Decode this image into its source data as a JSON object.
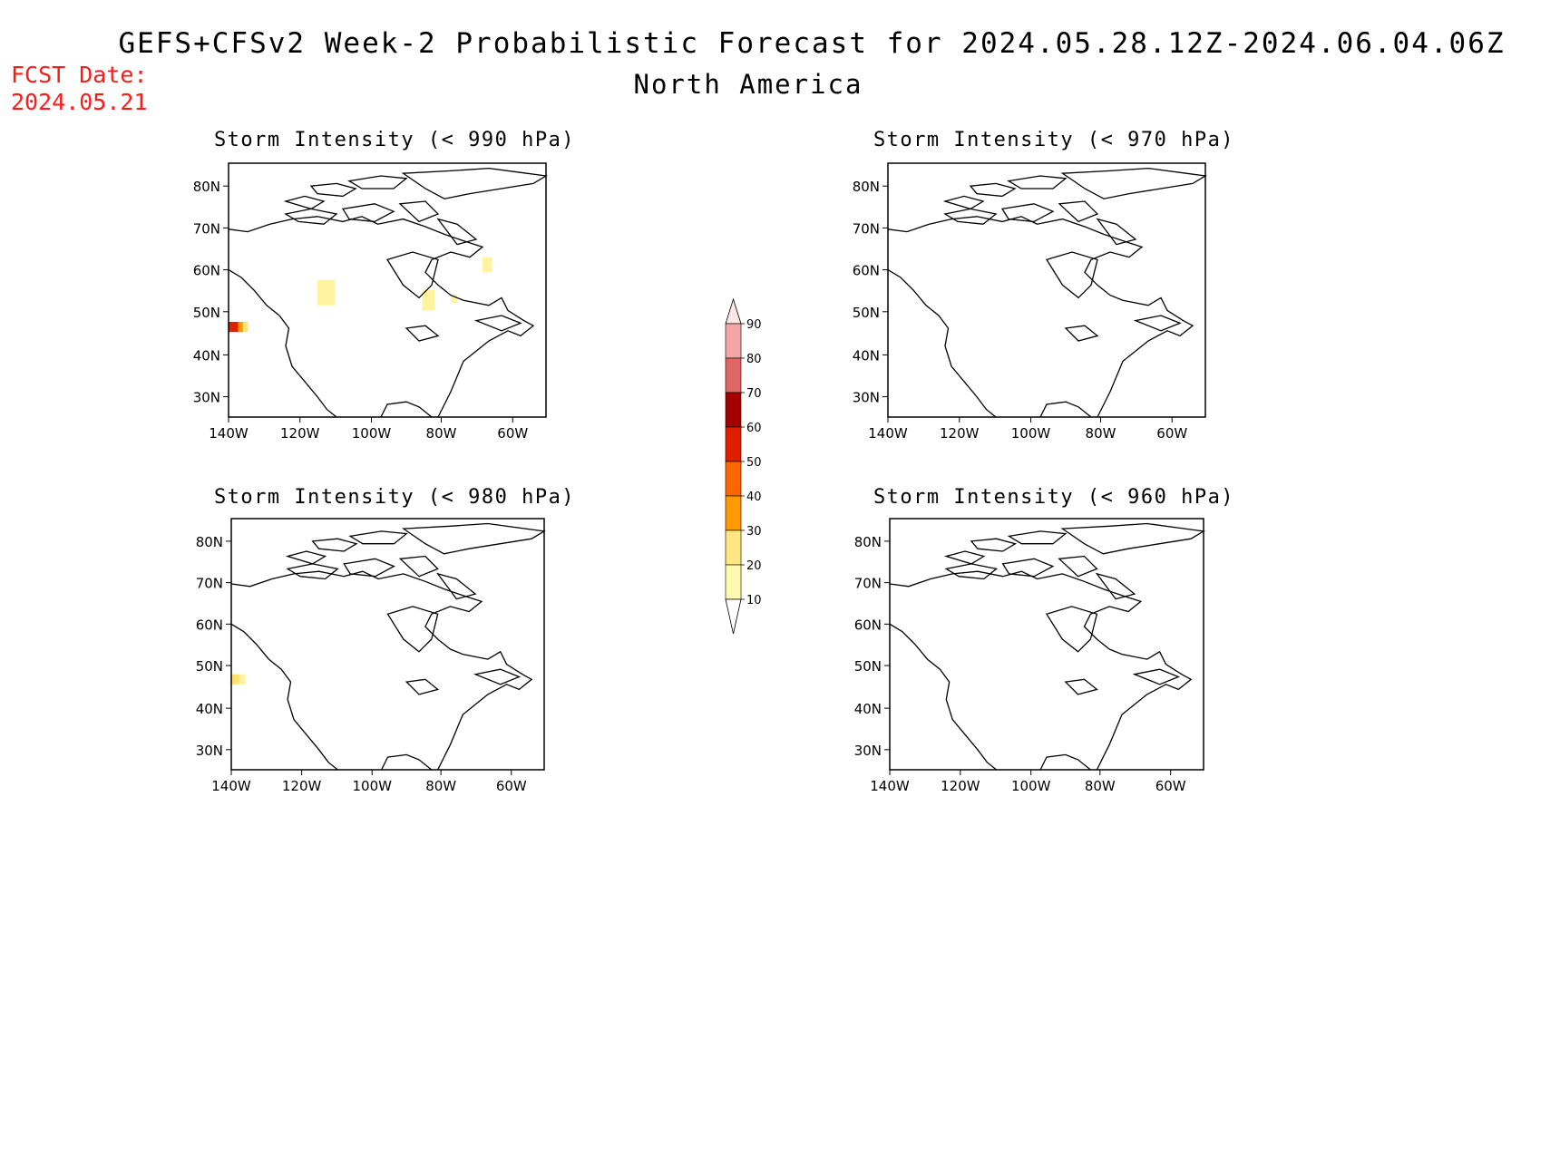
{
  "header": {
    "title": "GEFS+CFSv2 Week-2 Probabilistic Forecast for 2024.05.28.12Z-2024.06.04.06Z",
    "subtitle": "North America",
    "fcst_label": "FCST Date:",
    "fcst_date": "2024.05.21"
  },
  "panels": [
    {
      "id": "p990",
      "title": "Storm Intensity (< 990 hPa)",
      "lat_ticks": [
        "80N",
        "70N",
        "60N",
        "50N",
        "40N",
        "30N"
      ],
      "lon_ticks": [
        "140W",
        "120W",
        "100W",
        "80W",
        "60W"
      ]
    },
    {
      "id": "p970",
      "title": "Storm Intensity (< 970 hPa)",
      "lat_ticks": [
        "80N",
        "70N",
        "60N",
        "50N",
        "40N",
        "30N"
      ],
      "lon_ticks": [
        "140W",
        "120W",
        "100W",
        "80W",
        "60W"
      ]
    },
    {
      "id": "p980",
      "title": "Storm Intensity (< 980 hPa)",
      "lat_ticks": [
        "80N",
        "70N",
        "60N",
        "50N",
        "40N",
        "30N"
      ],
      "lon_ticks": [
        "140W",
        "120W",
        "100W",
        "80W",
        "60W"
      ]
    },
    {
      "id": "p960",
      "title": "Storm Intensity (< 960 hPa)",
      "lat_ticks": [
        "80N",
        "70N",
        "60N",
        "50N",
        "40N",
        "30N"
      ],
      "lon_ticks": [
        "140W",
        "120W",
        "100W",
        "80W",
        "60W"
      ]
    }
  ],
  "colorbar": {
    "labels": [
      "90",
      "80",
      "70",
      "60",
      "50",
      "40",
      "30",
      "20",
      "10"
    ],
    "colors": [
      "#ffe6e6",
      "#f4a6a6",
      "#e06666",
      "#a50000",
      "#e01e00",
      "#ff6600",
      "#ff9900",
      "#ffe680",
      "#fff8b0"
    ]
  },
  "shading_colors": {
    "light": "#fff3a0",
    "yellow": "#ffe070",
    "orange": "#ff9900",
    "red": "#e01e00"
  }
}
